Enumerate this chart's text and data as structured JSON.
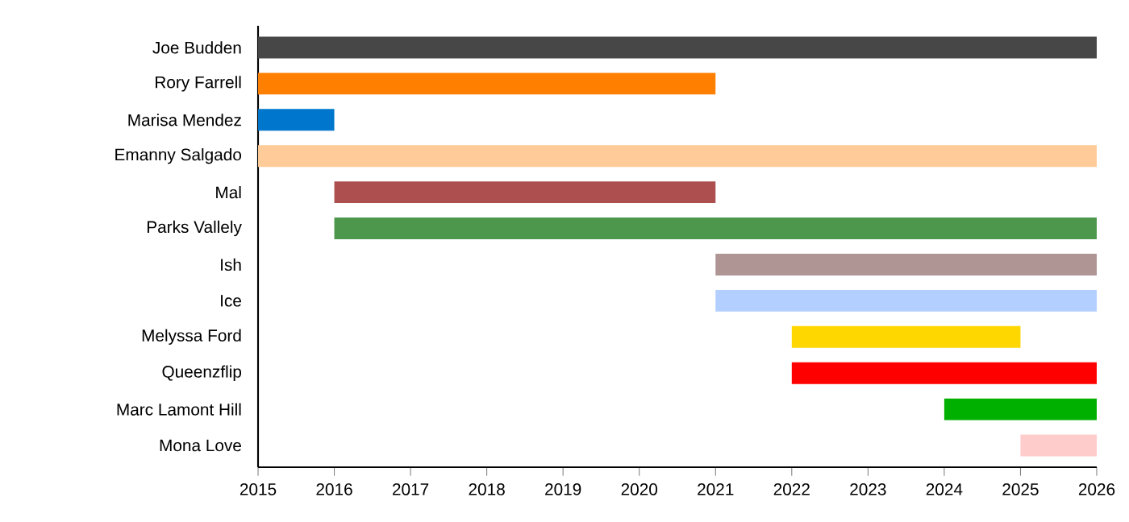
{
  "chart_data": {
    "type": "bar",
    "orientation": "horizontal",
    "categories": [
      "Joe Budden",
      "Rory Farrell",
      "Marisa Mendez",
      "Emanny Salgado",
      "Mal",
      "Parks Vallely",
      "Ish",
      "Ice",
      "Melyssa Ford",
      "Queenzflip",
      "Marc Lamont Hill",
      "Mona Love"
    ],
    "base": [
      2015,
      2015,
      2015,
      2015,
      2016,
      2016,
      2021,
      2021,
      2022,
      2022,
      2024,
      2025
    ],
    "values": [
      11,
      6,
      1,
      11,
      5,
      10,
      5,
      5,
      3,
      4,
      2,
      1
    ],
    "colors": [
      "#474747",
      "#ff8000",
      "#0077cc",
      "#ffcc99",
      "#ad4f4f",
      "#4c974c",
      "#b09595",
      "#b3cfff",
      "#ffd700",
      "#ff0000",
      "#00b000",
      "#ffcccc"
    ],
    "xlim": [
      2015,
      2026
    ],
    "xticks": [
      2015,
      2016,
      2017,
      2018,
      2019,
      2020,
      2021,
      2022,
      2023,
      2024,
      2025,
      2026
    ]
  }
}
